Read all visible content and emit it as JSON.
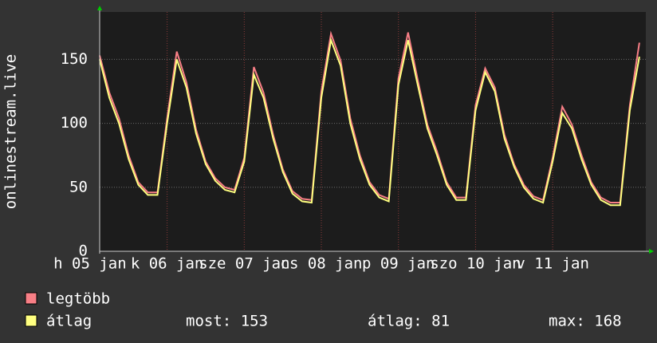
{
  "chart_data": {
    "type": "line",
    "ylabel": "onlinestream.live",
    "x": [
      0,
      3,
      6,
      9,
      12,
      15,
      18,
      21,
      24,
      27,
      30,
      33,
      36,
      39,
      42,
      45,
      48,
      51,
      54,
      57,
      60,
      63,
      66,
      69,
      72,
      75,
      78,
      81,
      84,
      87,
      90,
      93,
      96,
      99,
      102,
      105,
      108,
      111,
      114,
      117,
      120,
      123,
      126,
      129,
      132,
      135,
      138,
      141,
      144,
      147,
      150,
      153,
      156,
      159,
      162,
      165,
      168
    ],
    "xlim": [
      0,
      170
    ],
    "xticks": [
      {
        "value": -3,
        "label": "h 05 jan"
      },
      {
        "value": 21,
        "label": "k 06 jan"
      },
      {
        "value": 45,
        "label": "sze 07 jan"
      },
      {
        "value": 69,
        "label": "cs 08 jan"
      },
      {
        "value": 93,
        "label": "p 09 jan"
      },
      {
        "value": 117,
        "label": "szo 10 jan"
      },
      {
        "value": 141,
        "label": "v 11 jan"
      }
    ],
    "ylim": [
      0,
      187
    ],
    "yticks": [
      0,
      50,
      100,
      150
    ],
    "grid": true,
    "series": [
      {
        "name": "legtöbb",
        "color": "#f87f86",
        "values": [
          153,
          124,
          104,
          75,
          54,
          46,
          46,
          104,
          156,
          132,
          95,
          70,
          57,
          50,
          48,
          73,
          144,
          124,
          91,
          64,
          47,
          41,
          40,
          125,
          170,
          149,
          104,
          75,
          54,
          44,
          41,
          135,
          171,
          134,
          99,
          78,
          54,
          42,
          42,
          114,
          143,
          128,
          91,
          68,
          52,
          43,
          40,
          73,
          113,
          99,
          75,
          54,
          42,
          38,
          38,
          114,
          163
        ]
      },
      {
        "name": "átlag",
        "color": "#ffff80",
        "values": [
          150,
          120,
          100,
          72,
          52,
          44,
          44,
          100,
          150,
          128,
          92,
          68,
          55,
          48,
          46,
          70,
          138,
          120,
          88,
          62,
          45,
          39,
          38,
          120,
          165,
          145,
          100,
          72,
          52,
          42,
          39,
          130,
          165,
          130,
          96,
          75,
          52,
          40,
          40,
          110,
          140,
          125,
          88,
          66,
          50,
          41,
          38,
          70,
          108,
          96,
          72,
          52,
          40,
          36,
          36,
          110,
          152
        ]
      }
    ],
    "stats": [
      {
        "label": "most:",
        "value": 153
      },
      {
        "label": "átlag:",
        "value": 81
      },
      {
        "label": "max:",
        "value": 168
      }
    ]
  }
}
